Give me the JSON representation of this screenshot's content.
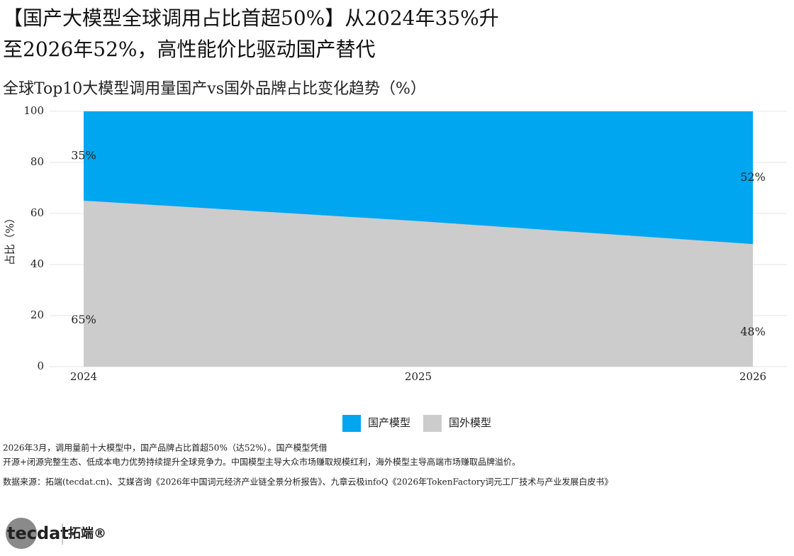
{
  "chart_data": {
    "type": "stacked-area",
    "title": "【国产大模型全球调用占比首超50%】从2024年35%升至2026年52%，高性能价比驱动国产替代",
    "subtitle": "全球Top10大模型调用量国产vs国外品牌占比变化趋势（%）",
    "y_label": "占比（%）",
    "categories": [
      "2024",
      "2025",
      "2026"
    ],
    "series": [
      {
        "name": "国产模型",
        "color": "#00a6f0",
        "values": [
          35,
          43,
          52
        ],
        "value_labels": [
          "35%",
          null,
          "52%"
        ]
      },
      {
        "name": "国外模型",
        "color": "#cccccc",
        "values": [
          65,
          57,
          48
        ],
        "value_labels": [
          "65%",
          null,
          "48%"
        ]
      }
    ],
    "ylim": [
      0,
      100
    ],
    "yticks": [
      0,
      20,
      40,
      60,
      80,
      100
    ],
    "grid": true,
    "notes": [
      "2026年3月，调用量前十大模型中，国产品牌占比首超50%（达52%）。国产模型凭借",
      "开源+闭源完整生态、低成本电力优势持续提升全球竞争力。中国模型主导大众市场赚取规模红利，海外模型主导高端市场赚取品牌溢价。",
      "数据来源：拓端(tecdat.cn)、艾媒咨询《2026年中国词元经济产业链全景分析报告》、九章云极infoQ《2026年TokenFactory词元工厂技术与产业发展白皮书》"
    ],
    "logo": {
      "mark": "tecdat",
      "name": "拓端®"
    }
  }
}
